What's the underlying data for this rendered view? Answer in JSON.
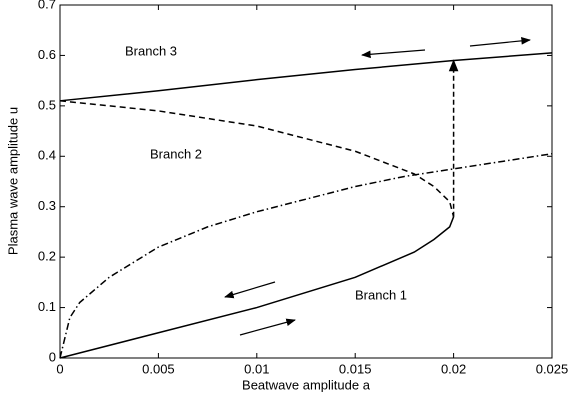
{
  "chart_data": {
    "type": "line",
    "xlabel": "Beatwave amplitude a",
    "ylabel": "Plasma wave amplitude u",
    "xlim": [
      0,
      0.025
    ],
    "ylim": [
      0,
      0.7
    ],
    "xticks": [
      0,
      0.005,
      0.01,
      0.015,
      0.02,
      0.025
    ],
    "yticks": [
      0,
      0.1,
      0.2,
      0.3,
      0.4,
      0.5,
      0.6,
      0.7
    ],
    "grid": false,
    "annotations": [
      "Branch 3",
      "Branch 2",
      "Branch 1"
    ],
    "series": [
      {
        "color": "#000000",
        "style": "solid",
        "x": [
          0,
          0.005,
          0.01,
          0.015,
          0.018,
          0.019,
          0.0198,
          0.02
        ],
        "values": [
          0,
          0.05,
          0.1,
          0.16,
          0.21,
          0.235,
          0.26,
          0.28
        ]
      },
      {
        "color": "#000000",
        "style": "dashed",
        "x": [
          0,
          0.005,
          0.01,
          0.015,
          0.018,
          0.019,
          0.0198,
          0.02
        ],
        "values": [
          0.51,
          0.49,
          0.46,
          0.41,
          0.365,
          0.34,
          0.31,
          0.28
        ]
      },
      {
        "color": "#000000",
        "style": "solid",
        "x": [
          0,
          0.005,
          0.01,
          0.015,
          0.02,
          0.025
        ],
        "values": [
          0.51,
          0.53,
          0.552,
          0.572,
          0.59,
          0.605
        ]
      },
      {
        "color": "#000000",
        "style": "dashdot",
        "x": [
          0,
          0.0005,
          0.001,
          0.0025,
          0.005,
          0.0075,
          0.01,
          0.0125,
          0.015,
          0.0175,
          0.02,
          0.0225,
          0.025
        ],
        "values": [
          0,
          0.08,
          0.11,
          0.16,
          0.22,
          0.26,
          0.29,
          0.315,
          0.34,
          0.36,
          0.375,
          0.39,
          0.405
        ]
      },
      {
        "color": "#000000",
        "style": "dashed-arrow",
        "x": [
          0.02,
          0.02
        ],
        "values": [
          0.28,
          0.59
        ]
      }
    ]
  }
}
